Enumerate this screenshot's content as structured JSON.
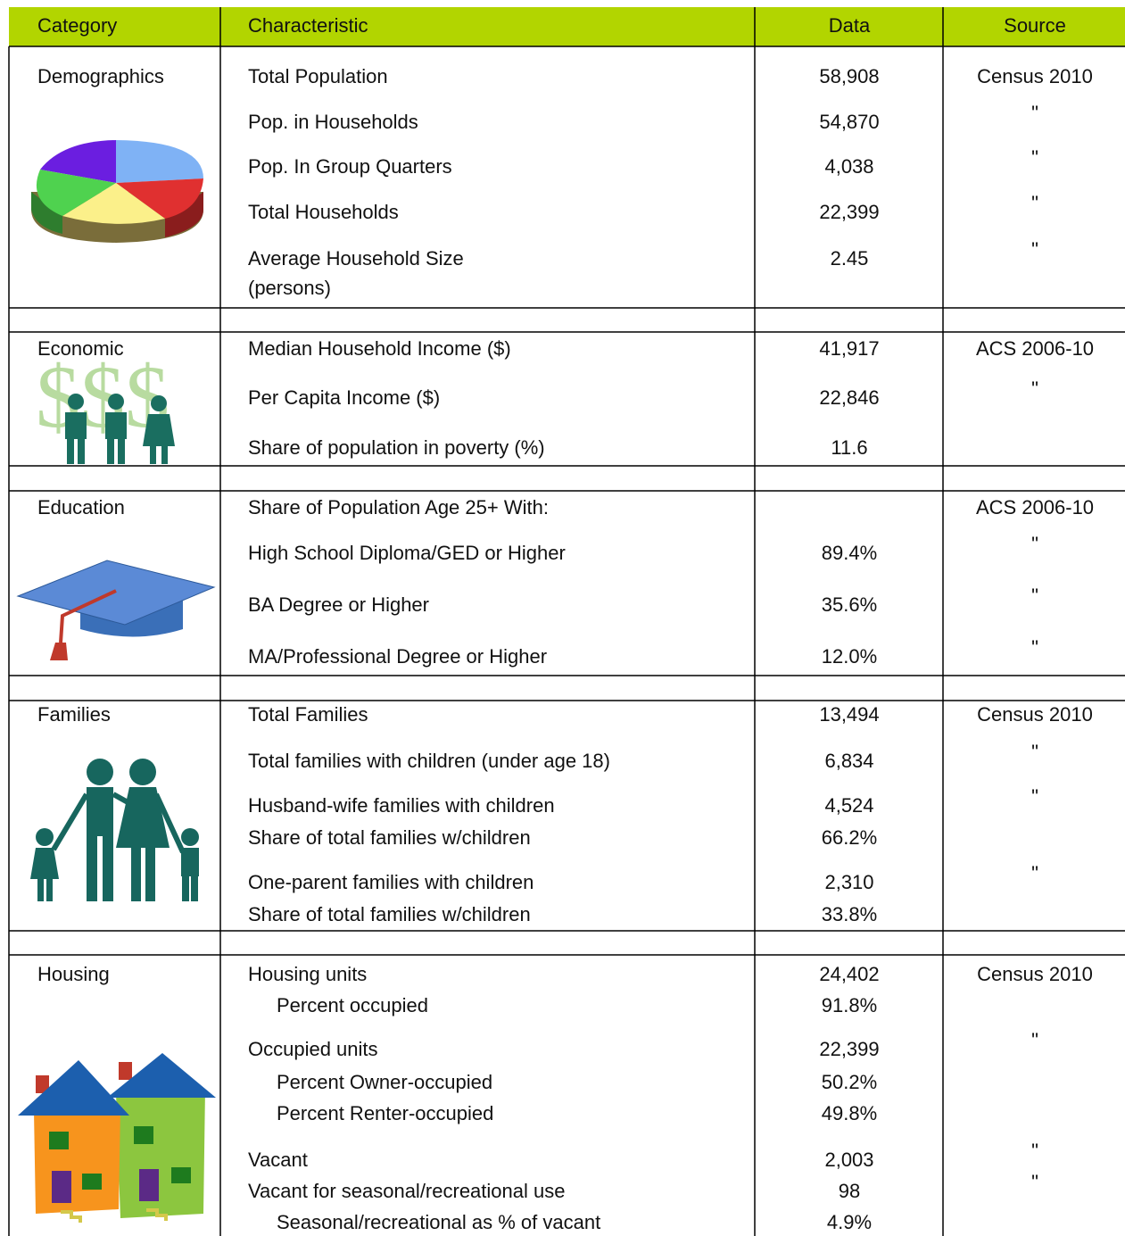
{
  "header": {
    "category": "Category",
    "characteristic": "Characteristic",
    "data": "Data",
    "source": "Source"
  },
  "sections": [
    {
      "category": "Demographics",
      "rows": [
        {
          "characteristic": "Total Population",
          "data": "58,908",
          "source": "Census 2010"
        },
        {
          "characteristic": "Pop. in Households",
          "data": "54,870",
          "source": "\""
        },
        {
          "characteristic": "Pop. In Group Quarters",
          "data": "4,038",
          "source": "\""
        },
        {
          "characteristic": "Total Households",
          "data": "22,399",
          "source": "\""
        },
        {
          "characteristic": "Average Household Size (persons)",
          "data": "2.45",
          "source": "\""
        }
      ]
    },
    {
      "category": "Economic",
      "rows": [
        {
          "characteristic": "Median Household Income ($)",
          "data": "41,917",
          "source": "ACS 2006-10"
        },
        {
          "characteristic": "Per Capita Income ($)",
          "data": "22,846",
          "source": "\""
        },
        {
          "characteristic": "Share of population in poverty (%)",
          "data": "11.6"
        }
      ]
    },
    {
      "category": "Education",
      "rows": [
        {
          "characteristic": "Share of Population Age 25+ With:",
          "source": "ACS 2006-10"
        },
        {
          "characteristic": "High School Diploma/GED or Higher",
          "data": "89.4%",
          "source": "\""
        },
        {
          "characteristic": "BA Degree or Higher",
          "data": "35.6%",
          "source": "\""
        },
        {
          "characteristic": "MA/Professional Degree or Higher",
          "data": "12.0%",
          "source": "\""
        }
      ]
    },
    {
      "category": "Families",
      "rows": [
        {
          "characteristic": "Total Families",
          "data": "13,494",
          "source": "Census 2010"
        },
        {
          "characteristic": "Total families with children (under age 18)",
          "data": "6,834",
          "source": "\""
        },
        {
          "characteristic": "Husband-wife families with children",
          "data": "4,524",
          "source": "\""
        },
        {
          "characteristic": "Share of total families w/children",
          "data": "66.2%"
        },
        {
          "characteristic": "One-parent families with children",
          "data": "2,310",
          "source": "\""
        },
        {
          "characteristic": "Share of total families w/children",
          "data": "33.8%"
        }
      ]
    },
    {
      "category": "Housing",
      "rows": [
        {
          "characteristic": "Housing units",
          "data": "24,402",
          "source": "Census 2010"
        },
        {
          "characteristic": "Percent occupied",
          "data": "91.8%"
        },
        {
          "characteristic": "Occupied units",
          "data": "22,399",
          "source": "\""
        },
        {
          "characteristic": "Percent Owner-occupied",
          "data": "50.2%"
        },
        {
          "characteristic": "Percent Renter-occupied",
          "data": "49.8%"
        },
        {
          "characteristic": "Vacant",
          "data": "2,003",
          "source": "\""
        },
        {
          "characteristic": "Vacant for seasonal/recreational use",
          "data": "98",
          "source": "\""
        },
        {
          "characteristic": "Seasonal/recreational as % of vacant",
          "data": "4.9%"
        }
      ]
    }
  ]
}
